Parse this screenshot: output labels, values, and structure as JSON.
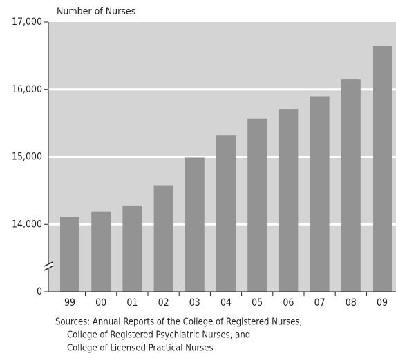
{
  "chart_data": {
    "type": "bar",
    "y_label": "Number of Nurses",
    "categories": [
      "99",
      "00",
      "01",
      "02",
      "03",
      "04",
      "05",
      "06",
      "07",
      "08",
      "09"
    ],
    "values": [
      14110,
      14190,
      14280,
      14580,
      14990,
      15320,
      15570,
      15710,
      15900,
      16150,
      16650
    ],
    "color": "#939393",
    "ylim": [
      0,
      17000
    ],
    "axis_break": [
      0,
      13000
    ],
    "yticks": [
      0,
      {
        "value": 14000,
        "label": "14,000"
      },
      {
        "value": 15000,
        "label": "15,000"
      },
      {
        "value": 16000,
        "label": "16,000"
      },
      {
        "value": 17000,
        "label": "17,000"
      }
    ],
    "grid": true,
    "sources": [
      "Sources:  Annual Reports of the College of Registered Nurses,",
      "College of Registered Psychiatric Nurses, and",
      "College of Licensed Practical Nurses"
    ]
  }
}
